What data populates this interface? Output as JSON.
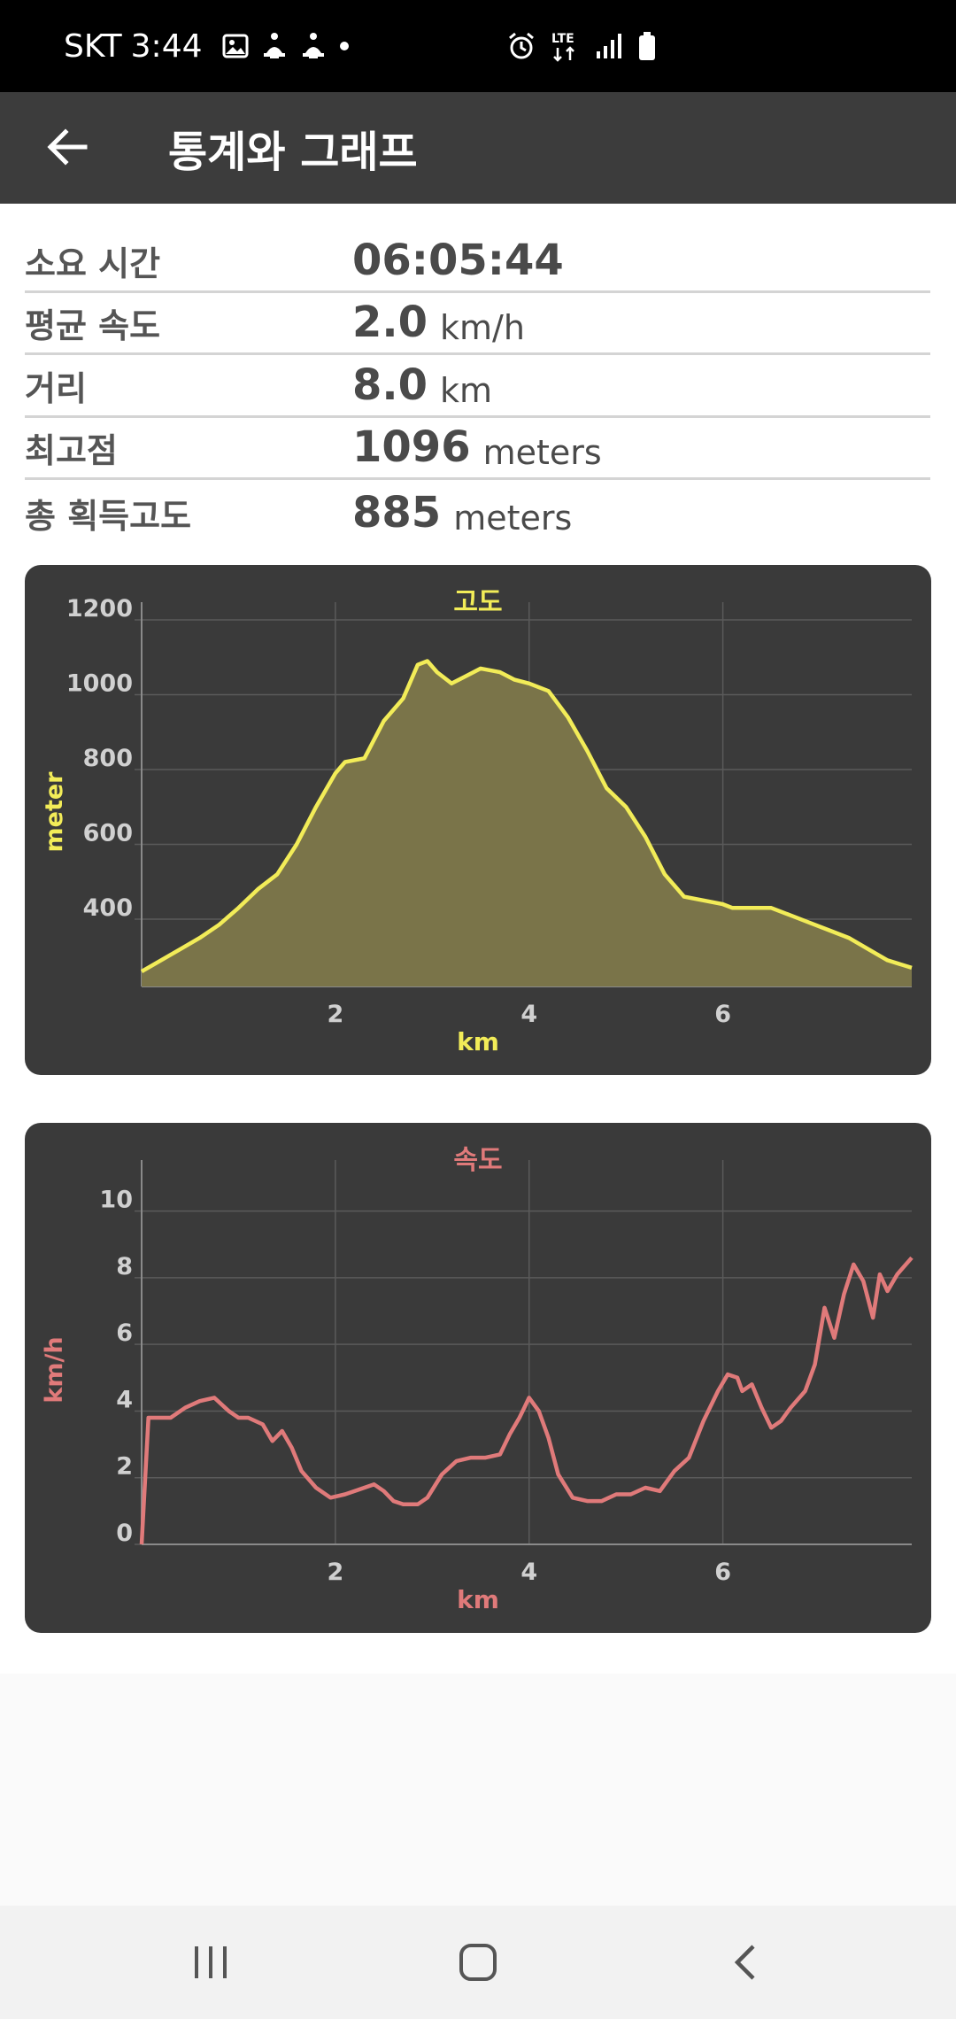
{
  "status_bar": {
    "carrier": "SKT",
    "time": "3:44",
    "network_label": "LTE",
    "left_icons": [
      "gallery-icon",
      "walk-icon",
      "walk-icon",
      "dot-icon"
    ],
    "right_icons": [
      "alarm-icon",
      "lte-icon",
      "signal-icon",
      "battery-icon"
    ]
  },
  "app_bar": {
    "title": "통계와 그래프",
    "back_icon": "arrow-left-icon"
  },
  "stats": [
    {
      "label": "소요 시간",
      "value": "06:05:44",
      "unit": ""
    },
    {
      "label": "평균 속도",
      "value": "2.0",
      "unit": "km/h"
    },
    {
      "label": "거리",
      "value": "8.0",
      "unit": "km"
    },
    {
      "label": "최고점",
      "value": "1096",
      "unit": "meters"
    },
    {
      "label": "총 획득고도",
      "value": "885",
      "unit": "meters"
    }
  ],
  "colors": {
    "elevation": "#f2ec58",
    "elevation_fill": "#7a7449",
    "speed": "#e07a7a",
    "card_bg": "#3a3a3a",
    "grid": "#5a5a5a",
    "tick": "#d0d0d0"
  },
  "chart_data": [
    {
      "type": "area",
      "title": "고도",
      "xlabel": "km",
      "ylabel": "meter",
      "xlim": [
        0,
        7.95
      ],
      "ylim": [
        220,
        1200
      ],
      "xticks": [
        2,
        4,
        6
      ],
      "yticks": [
        400,
        600,
        800,
        1000,
        1200
      ],
      "grid": true,
      "series": [
        {
          "x": [
            0,
            0.2,
            0.4,
            0.6,
            0.8,
            1.0,
            1.2,
            1.4,
            1.6,
            1.8,
            2.0,
            2.1,
            2.3,
            2.5,
            2.7,
            2.85,
            2.95,
            3.05,
            3.2,
            3.35,
            3.5,
            3.7,
            3.85,
            4.0,
            4.2,
            4.4,
            4.6,
            4.8,
            5.0,
            5.2,
            5.4,
            5.6,
            5.8,
            6.0,
            6.1,
            6.3,
            6.5,
            6.7,
            6.9,
            7.1,
            7.3,
            7.5,
            7.7,
            7.95
          ],
          "y": [
            260,
            290,
            320,
            350,
            385,
            430,
            480,
            520,
            600,
            700,
            790,
            820,
            830,
            930,
            990,
            1080,
            1090,
            1060,
            1030,
            1050,
            1070,
            1060,
            1040,
            1030,
            1010,
            940,
            850,
            750,
            700,
            620,
            520,
            460,
            450,
            440,
            430,
            430,
            430,
            410,
            390,
            370,
            350,
            320,
            290,
            270
          ]
        }
      ]
    },
    {
      "type": "line",
      "title": "속도",
      "xlabel": "km",
      "ylabel": "km/h",
      "xlim": [
        0,
        7.95
      ],
      "ylim": [
        0,
        11
      ],
      "xticks": [
        2,
        4,
        6
      ],
      "yticks": [
        0,
        2,
        4,
        6,
        8,
        10
      ],
      "grid": true,
      "series": [
        {
          "x": [
            0,
            0.07,
            0.15,
            0.3,
            0.45,
            0.6,
            0.75,
            0.9,
            1.0,
            1.1,
            1.25,
            1.35,
            1.45,
            1.55,
            1.65,
            1.8,
            1.95,
            2.1,
            2.2,
            2.3,
            2.4,
            2.5,
            2.6,
            2.7,
            2.85,
            2.95,
            3.1,
            3.25,
            3.4,
            3.55,
            3.7,
            3.8,
            3.9,
            3.95,
            4.0,
            4.1,
            4.2,
            4.3,
            4.45,
            4.6,
            4.75,
            4.9,
            5.05,
            5.2,
            5.35,
            5.5,
            5.65,
            5.8,
            5.95,
            6.05,
            6.15,
            6.2,
            6.3,
            6.4,
            6.5,
            6.6,
            6.7,
            6.85,
            6.95,
            7.05,
            7.15,
            7.25,
            7.35,
            7.45,
            7.55,
            7.62,
            7.7,
            7.8,
            7.95
          ],
          "y": [
            0,
            3.8,
            3.8,
            3.8,
            4.1,
            4.3,
            4.4,
            4.0,
            3.8,
            3.8,
            3.6,
            3.1,
            3.4,
            2.9,
            2.2,
            1.7,
            1.4,
            1.5,
            1.6,
            1.7,
            1.8,
            1.6,
            1.3,
            1.2,
            1.2,
            1.4,
            2.1,
            2.5,
            2.6,
            2.6,
            2.7,
            3.3,
            3.8,
            4.1,
            4.4,
            4.0,
            3.2,
            2.1,
            1.4,
            1.3,
            1.3,
            1.5,
            1.5,
            1.7,
            1.6,
            2.2,
            2.6,
            3.7,
            4.6,
            5.1,
            5.0,
            4.6,
            4.8,
            4.1,
            3.5,
            3.7,
            4.1,
            4.6,
            5.4,
            7.1,
            6.2,
            7.5,
            8.4,
            7.9,
            6.8,
            8.1,
            7.6,
            8.1,
            8.6
          ]
        }
      ]
    }
  ],
  "nav_bar": {
    "icons": [
      "recent-apps-icon",
      "home-icon",
      "back-nav-icon"
    ]
  }
}
